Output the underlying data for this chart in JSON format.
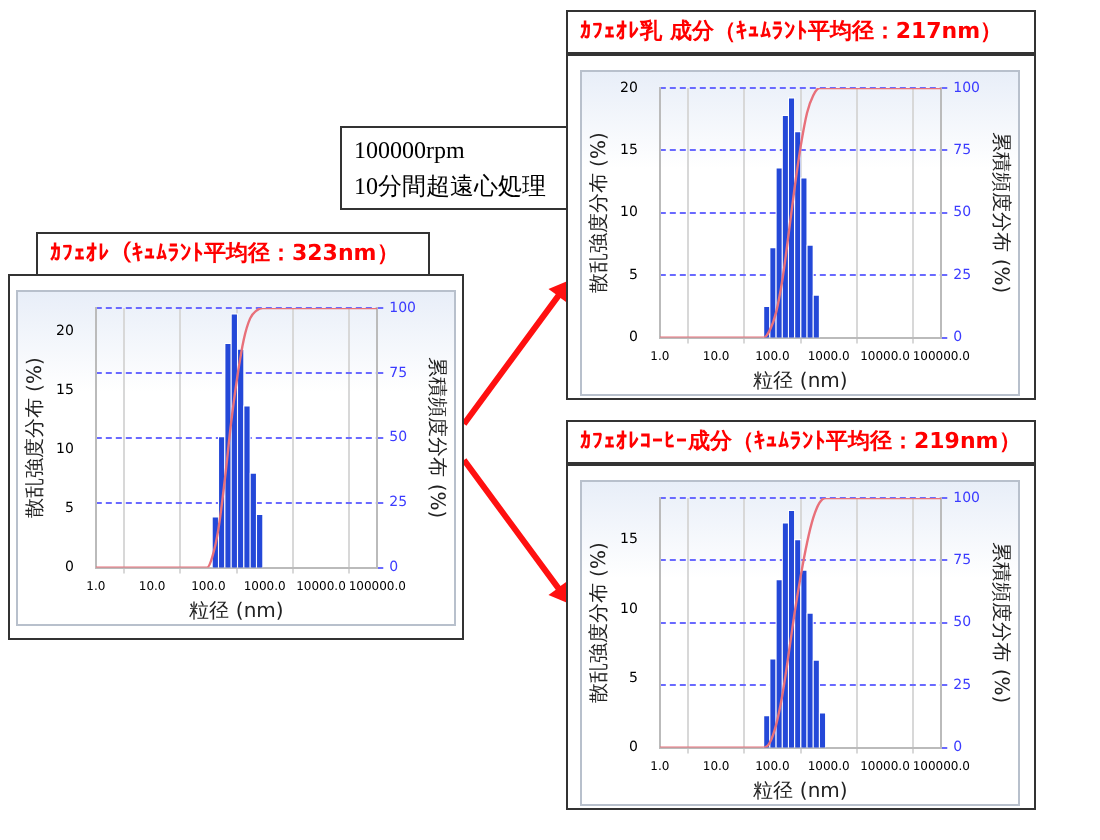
{
  "chart_data": [
    {
      "type": "histogram",
      "title": "ｶﾌｪｵﾚ（ｷｭﾑﾗﾝﾄ平均径：323nm）",
      "xlabel": "粒径 (nm)",
      "ylabel": "散乱強度分布 (%)",
      "y2label": "累積頻度分布 (%)",
      "log": "x",
      "color": "#2448d8",
      "bins": [
        117,
        151,
        196,
        254,
        329,
        426,
        552,
        715,
        926
      ],
      "values": [
        4.3,
        11.1,
        19,
        21.5,
        18.5,
        13.7,
        8,
        4.5
      ],
      "series": [
        {
          "type": "line",
          "axis": "y2",
          "color": "#e8707a",
          "x": [
            1,
            95,
            117,
            151,
            196,
            254,
            329,
            426,
            552,
            715,
            926,
            100000
          ],
          "values": [
            0,
            0,
            4,
            15,
            34,
            56,
            74,
            88,
            96,
            99,
            100,
            100
          ]
        }
      ],
      "xlim": [
        1,
        100000
      ],
      "xticks": [
        {
          "value": 1,
          "label": "1.0"
        },
        {
          "value": 10,
          "label": "10.0"
        },
        {
          "value": 100,
          "label": "100.0"
        },
        {
          "value": 1000,
          "label": "1000.0"
        },
        {
          "value": 10000,
          "label": "10000.0"
        },
        {
          "value": 100000,
          "label": "100000.0"
        }
      ],
      "ylim": [
        0,
        22
      ],
      "yticks": [
        0,
        5,
        10,
        15,
        20
      ],
      "y2lim": [
        0,
        100
      ],
      "y2ticks": [
        0,
        25,
        50,
        75,
        100
      ],
      "grid": true
    },
    {
      "type": "histogram",
      "title": "ｶﾌｪｵﾚ乳 成分（ｷｭﾑﾗﾝﾄ平均径：217nm）",
      "xlabel": "粒径 (nm)",
      "ylabel": "散乱強度分布 (%)",
      "y2label": "累積頻度分布 (%)",
      "log": "x",
      "color": "#2448d8",
      "bins": [
        70,
        90,
        116,
        150,
        193,
        248,
        320,
        412,
        531,
        684
      ],
      "values": [
        2.5,
        7.2,
        13.6,
        17.8,
        19.2,
        16.5,
        12.8,
        7.4,
        3.4
      ],
      "series": [
        {
          "type": "line",
          "axis": "y2",
          "color": "#e8707a",
          "x": [
            1,
            60,
            70,
            90,
            116,
            150,
            193,
            248,
            320,
            412,
            531,
            684,
            100000
          ],
          "values": [
            0,
            0,
            0,
            3,
            10,
            23,
            41,
            60,
            77,
            90,
            97,
            100,
            100
          ]
        }
      ],
      "xlim": [
        1,
        100000
      ],
      "xticks": [
        {
          "value": 1,
          "label": "1.0"
        },
        {
          "value": 10,
          "label": "10.0"
        },
        {
          "value": 100,
          "label": "100.0"
        },
        {
          "value": 1000,
          "label": "1000.0"
        },
        {
          "value": 10000,
          "label": "10000.0"
        },
        {
          "value": 100000,
          "label": "100000.0"
        }
      ],
      "ylim": [
        0,
        20
      ],
      "yticks": [
        0,
        5,
        10,
        15,
        20
      ],
      "y2lim": [
        0,
        100
      ],
      "y2ticks": [
        0,
        25,
        50,
        75,
        100
      ],
      "grid": true,
      "annotations": [
        "100000rpm",
        "10分間超遠心処理"
      ]
    },
    {
      "type": "histogram",
      "title": "ｶﾌｪｵﾚｺｰﾋｰ成分（ｷｭﾑﾗﾝﾄ平均径：219nm）",
      "xlabel": "粒径 (nm)",
      "ylabel": "散乱強度分布 (%)",
      "y2label": "累積頻度分布 (%)",
      "log": "x",
      "color": "#2448d8",
      "bins": [
        70,
        90,
        116,
        150,
        193,
        248,
        320,
        412,
        531,
        684,
        882
      ],
      "values": [
        2.3,
        6.4,
        12.1,
        16.2,
        17.1,
        15,
        12.8,
        9.7,
        6.3,
        2.5
      ],
      "series": [
        {
          "type": "line",
          "axis": "y2",
          "color": "#e8707a",
          "x": [
            1,
            60,
            70,
            90,
            116,
            150,
            193,
            248,
            320,
            412,
            531,
            684,
            882,
            100000
          ],
          "values": [
            0,
            0,
            0,
            2,
            9,
            21,
            37,
            54,
            69,
            82,
            92,
            98,
            100,
            100
          ]
        }
      ],
      "xlim": [
        1,
        100000
      ],
      "xticks": [
        {
          "value": 1,
          "label": "1.0"
        },
        {
          "value": 10,
          "label": "10.0"
        },
        {
          "value": 100,
          "label": "100.0"
        },
        {
          "value": 1000,
          "label": "1000.0"
        },
        {
          "value": 10000,
          "label": "10000.0"
        },
        {
          "value": 100000,
          "label": "100000.0"
        }
      ],
      "ylim": [
        0,
        18
      ],
      "yticks": [
        0,
        5,
        10,
        15
      ],
      "y2lim": [
        0,
        100
      ],
      "y2ticks": [
        0,
        25,
        50,
        75,
        100
      ],
      "grid": true
    }
  ]
}
